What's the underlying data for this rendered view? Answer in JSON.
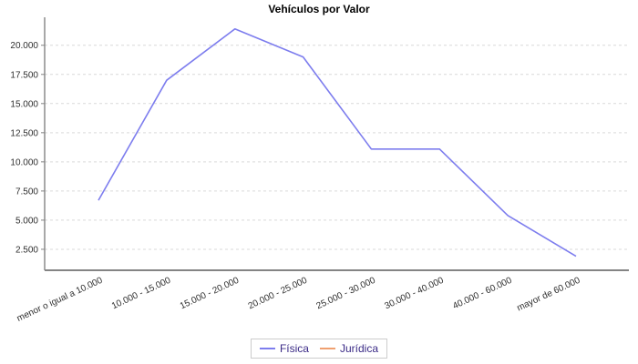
{
  "chart_data": {
    "type": "line",
    "title": "Vehículos por Valor",
    "categories": [
      "menor o igual a 10.000",
      "10.000 - 15.000",
      "15.000 - 20.000",
      "20.000 - 25.000",
      "25.000 - 30.000",
      "30.000 - 40.000",
      "40.000 - 60.000",
      "mayor de 60.000"
    ],
    "series": [
      {
        "name": "Física",
        "color": "#7d7dee",
        "values": [
          6700,
          17000,
          21400,
          19000,
          11100,
          11100,
          5400,
          1900
        ]
      },
      {
        "name": "Jurídica",
        "color": "#f0a070",
        "values": []
      }
    ],
    "y_ticks": [
      2500,
      5000,
      7500,
      10000,
      12500,
      15000,
      17500,
      20000
    ],
    "y_tick_labels": [
      "2.500",
      "5.000",
      "7.500",
      "10.000",
      "12.500",
      "15.000",
      "17.500",
      "20.000"
    ],
    "ylim": [
      700,
      22400
    ],
    "xlabel": "",
    "ylabel": "",
    "grid": "horizontal-dashed",
    "legend_position": "bottom"
  },
  "colors": {
    "fisica_line": "#7d7dee",
    "juridica_line": "#f0a070",
    "legend_text": "#3a2a86",
    "legend_border": "#cccccc",
    "axis_line": "#848484",
    "gridline": "#d9d9d9",
    "tick_text": "#2e2e2e",
    "title_text": "#000000",
    "background": "#ffffff"
  }
}
